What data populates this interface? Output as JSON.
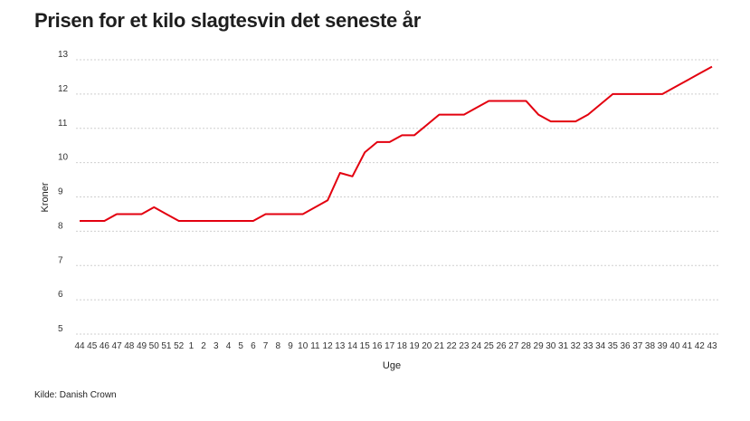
{
  "chart_data": {
    "type": "line",
    "title": "Prisen for et kilo slagtesvin det seneste år",
    "xlabel": "Uge",
    "ylabel": "Kroner",
    "ylim": [
      5,
      13
    ],
    "yticks": [
      5,
      6,
      7,
      8,
      9,
      10,
      11,
      12,
      13
    ],
    "grid": "horizontal dashed",
    "source": "Kilde: Danish Crown",
    "color": "#e3000f",
    "categories": [
      "44",
      "45",
      "46",
      "47",
      "48",
      "49",
      "50",
      "51",
      "52",
      "1",
      "2",
      "3",
      "4",
      "5",
      "6",
      "7",
      "8",
      "9",
      "10",
      "11",
      "12",
      "13",
      "14",
      "15",
      "16",
      "17",
      "18",
      "19",
      "20",
      "21",
      "22",
      "23",
      "24",
      "25",
      "26",
      "27",
      "28",
      "29",
      "30",
      "31",
      "32",
      "33",
      "34",
      "35",
      "36",
      "37",
      "38",
      "39",
      "40",
      "41",
      "42",
      "43"
    ],
    "values": [
      8.3,
      8.3,
      8.3,
      8.5,
      8.5,
      8.5,
      8.7,
      8.5,
      8.3,
      8.3,
      8.3,
      8.3,
      8.3,
      8.3,
      8.3,
      8.5,
      8.5,
      8.5,
      8.5,
      8.7,
      8.9,
      9.7,
      9.6,
      10.3,
      10.6,
      10.6,
      10.8,
      10.8,
      11.1,
      11.4,
      11.4,
      11.4,
      11.6,
      11.8,
      11.8,
      11.8,
      11.8,
      11.4,
      11.2,
      11.2,
      11.2,
      11.4,
      11.7,
      12.0,
      12.0,
      12.0,
      12.0,
      12.0,
      12.2,
      12.4,
      12.6,
      12.8
    ]
  }
}
